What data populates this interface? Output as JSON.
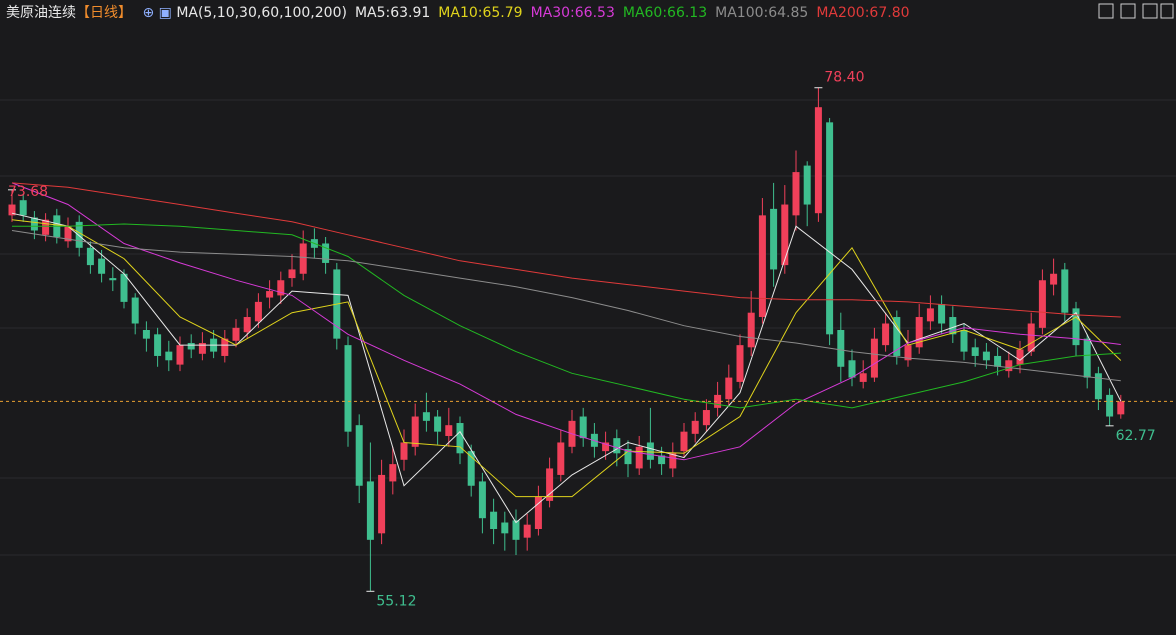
{
  "header": {
    "title": "美原油连续",
    "period": "【日线】",
    "ma_label": "MA(5,10,30,60,100,200)"
  },
  "chart_data": {
    "type": "candlestick",
    "ylim": [
      53.1,
      81.3
    ],
    "up_color": "#f0405a",
    "down_color": "#3fbf8f",
    "last_price_line": true,
    "last_price_color": "#e8a030",
    "candles": {
      "open": [
        72.5,
        73.2,
        72.4,
        71.6,
        72.5,
        71.3,
        72.2,
        71.0,
        70.5,
        69.6,
        69.8,
        68.7,
        67.2,
        67.0,
        66.2,
        65.6,
        66.6,
        66.1,
        66.8,
        66.0,
        66.7,
        67.1,
        67.6,
        68.7,
        68.8,
        69.6,
        69.8,
        71.4,
        71.2,
        70.0,
        66.5,
        62.8,
        60.2,
        57.8,
        60.2,
        61.2,
        61.8,
        63.4,
        63.2,
        62.3,
        62.9,
        61.6,
        60.2,
        58.8,
        58.3,
        58.4,
        57.6,
        58.0,
        59.3,
        60.5,
        61.8,
        63.2,
        62.4,
        61.6,
        62.2,
        61.7,
        60.8,
        62.0,
        61.4,
        60.8,
        61.6,
        62.4,
        62.8,
        63.6,
        64.0,
        64.8,
        66.4,
        67.8,
        72.8,
        70.2,
        72.5,
        74.8,
        72.6,
        76.8,
        67.2,
        65.8,
        64.8,
        65.0,
        66.5,
        67.8,
        65.8,
        66.4,
        67.6,
        68.4,
        67.8,
        67.2,
        66.4,
        66.2,
        66.0,
        65.3,
        65.6,
        66.2,
        67.3,
        69.3,
        70.0,
        68.2,
        66.8,
        65.2,
        64.2,
        63.3
      ],
      "high": [
        73.68,
        73.5,
        72.7,
        72.6,
        72.8,
        72.4,
        72.5,
        71.3,
        70.9,
        70.1,
        70.0,
        68.9,
        67.6,
        67.3,
        66.7,
        66.9,
        67.0,
        67.1,
        67.2,
        67.2,
        67.7,
        68.2,
        68.9,
        69.5,
        69.9,
        70.7,
        71.8,
        71.9,
        71.5,
        70.3,
        66.9,
        63.3,
        62.0,
        61.2,
        61.8,
        62.6,
        63.8,
        64.3,
        63.5,
        63.6,
        63.2,
        61.9,
        60.6,
        59.4,
        58.8,
        58.9,
        58.7,
        60.0,
        61.3,
        62.6,
        63.5,
        63.6,
        62.9,
        62.5,
        62.6,
        62.1,
        62.3,
        63.6,
        61.8,
        62.0,
        62.9,
        63.4,
        64.0,
        64.8,
        65.6,
        67.0,
        69.0,
        73.3,
        74.0,
        73.9,
        75.5,
        75.0,
        78.4,
        77.0,
        68.0,
        66.3,
        65.8,
        67.3,
        68.0,
        68.1,
        67.2,
        68.4,
        68.8,
        68.8,
        68.3,
        67.5,
        66.8,
        66.6,
        66.4,
        66.2,
        66.7,
        68.0,
        70.0,
        70.5,
        70.3,
        68.5,
        67.0,
        65.5,
        64.5,
        64.2
      ],
      "low": [
        72.2,
        72.2,
        71.4,
        71.3,
        71.2,
        71.0,
        70.6,
        69.8,
        69.4,
        69.0,
        68.2,
        67.0,
        66.2,
        65.5,
        65.3,
        65.3,
        65.9,
        65.8,
        65.9,
        65.7,
        66.4,
        66.8,
        67.3,
        68.2,
        68.4,
        69.2,
        69.5,
        70.5,
        69.8,
        66.3,
        61.8,
        59.2,
        55.12,
        57.3,
        59.6,
        60.7,
        61.4,
        62.5,
        61.9,
        61.8,
        61.0,
        59.5,
        57.8,
        57.3,
        57.0,
        56.8,
        57.0,
        57.7,
        59.0,
        60.2,
        61.5,
        61.8,
        61.3,
        61.2,
        60.9,
        60.4,
        60.5,
        60.8,
        60.5,
        60.4,
        61.3,
        62.0,
        62.5,
        63.2,
        63.7,
        64.5,
        66.0,
        67.5,
        69.2,
        69.8,
        71.8,
        72.0,
        72.2,
        66.5,
        64.8,
        64.6,
        64.5,
        64.8,
        66.2,
        65.6,
        65.5,
        66.1,
        67.2,
        67.0,
        66.6,
        65.8,
        65.5,
        65.4,
        65.1,
        65.0,
        65.2,
        66.0,
        67.0,
        68.8,
        67.6,
        66.0,
        64.5,
        63.5,
        62.77,
        63.1
      ],
      "close": [
        73.0,
        72.5,
        71.8,
        72.3,
        71.5,
        72.0,
        71.0,
        70.2,
        69.8,
        69.5,
        68.5,
        67.5,
        66.8,
        66.0,
        65.8,
        66.5,
        66.3,
        66.6,
        66.2,
        66.8,
        67.3,
        67.8,
        68.5,
        69.0,
        69.5,
        70.0,
        71.2,
        71.0,
        70.3,
        66.8,
        62.5,
        60.0,
        57.5,
        60.5,
        61.0,
        62.0,
        63.2,
        63.0,
        62.5,
        62.8,
        61.5,
        60.0,
        58.5,
        58.0,
        57.8,
        57.5,
        58.2,
        59.5,
        60.8,
        62.0,
        63.0,
        62.2,
        61.8,
        62.0,
        61.5,
        61.0,
        61.8,
        61.2,
        61.0,
        61.5,
        62.5,
        63.0,
        63.5,
        64.2,
        65.0,
        66.5,
        68.0,
        72.5,
        70.0,
        73.0,
        74.5,
        73.0,
        77.5,
        67.0,
        65.5,
        65.0,
        65.2,
        66.8,
        67.5,
        66.0,
        66.5,
        67.8,
        68.2,
        67.5,
        67.0,
        66.2,
        66.0,
        65.8,
        65.5,
        65.8,
        66.3,
        67.5,
        69.5,
        69.8,
        68.0,
        66.5,
        65.0,
        64.0,
        63.2,
        63.9
      ]
    },
    "ma_x": [
      0,
      5,
      10,
      15,
      20,
      25,
      30,
      35,
      40,
      45,
      50,
      55,
      60,
      65,
      70,
      75,
      80,
      85,
      90,
      95,
      99
    ],
    "series": [
      {
        "label": "MA5:63.91",
        "color": "#e8e8e8",
        "values": [
          72.6,
          72.0,
          69.8,
          66.5,
          66.5,
          69.0,
          68.8,
          60.0,
          62.5,
          58.3,
          60.5,
          62.0,
          61.3,
          64.3,
          72.0,
          70.0,
          66.6,
          67.5,
          65.8,
          68.0,
          63.91
        ]
      },
      {
        "label": "MA10:65.79",
        "color": "#e0d41c",
        "values": [
          72.3,
          72.0,
          70.5,
          67.8,
          66.5,
          68.0,
          68.5,
          62.0,
          61.8,
          59.5,
          59.5,
          61.6,
          61.5,
          63.2,
          68.0,
          71.0,
          66.5,
          67.2,
          66.3,
          67.8,
          65.79
        ]
      },
      {
        "label": "MA30:66.53",
        "color": "#d63ad6",
        "values": [
          74.0,
          73.0,
          71.2,
          70.3,
          69.5,
          68.8,
          67.0,
          65.8,
          64.7,
          63.3,
          62.4,
          61.6,
          61.2,
          61.8,
          63.8,
          65.0,
          66.6,
          67.3,
          67.0,
          66.8,
          66.53
        ]
      },
      {
        "label": "MA60:66.13",
        "color": "#22b822",
        "values": [
          72.0,
          72.0,
          72.1,
          72.0,
          71.8,
          71.6,
          70.6,
          68.8,
          67.4,
          66.2,
          65.2,
          64.6,
          64.0,
          63.6,
          64.0,
          63.6,
          64.2,
          64.8,
          65.6,
          66.0,
          66.13
        ]
      },
      {
        "label": "MA100:64.85",
        "color": "#8c8c8c",
        "values": [
          71.8,
          71.4,
          71.0,
          70.8,
          70.7,
          70.6,
          70.4,
          70.0,
          69.6,
          69.2,
          68.7,
          68.1,
          67.4,
          66.9,
          66.6,
          66.2,
          65.9,
          65.7,
          65.4,
          65.1,
          64.85
        ]
      },
      {
        "label": "MA200:67.80",
        "color": "#e03a3a",
        "values": [
          74.0,
          73.8,
          73.4,
          73.0,
          72.6,
          72.2,
          71.6,
          71.0,
          70.4,
          70.0,
          69.6,
          69.3,
          69.0,
          68.7,
          68.6,
          68.6,
          68.5,
          68.3,
          68.1,
          67.9,
          67.8
        ]
      }
    ],
    "annotations": [
      {
        "text": "78.40",
        "value": 78.4
      },
      {
        "text": "55.12",
        "value": 55.12
      },
      {
        "text": "62.77",
        "value": 62.77
      },
      {
        "text": "73.68",
        "value": 73.68
      }
    ]
  }
}
